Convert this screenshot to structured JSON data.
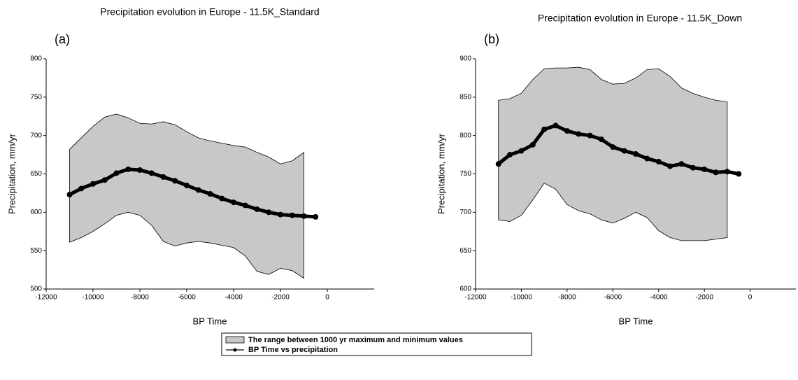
{
  "chart_data": [
    {
      "type": "line",
      "title": "Precipitation evolution in Europe - 11.5K_Standard",
      "panel_label": "(a)",
      "xlabel": "BP Time",
      "ylabel": "Precipitation, mm/yr",
      "xlim": [
        -12000,
        2000
      ],
      "ylim": [
        500,
        800
      ],
      "xticks": [
        -12000,
        -10000,
        -8000,
        -6000,
        -4000,
        -2000,
        0
      ],
      "yticks": [
        500,
        550,
        600,
        650,
        700,
        750,
        800
      ],
      "band": {
        "color": "#c8c8c8",
        "x": [
          -11000,
          -10500,
          -10000,
          -9500,
          -9000,
          -8500,
          -8000,
          -7500,
          -7000,
          -6500,
          -6000,
          -5500,
          -5000,
          -4500,
          -4000,
          -3500,
          -3000,
          -2500,
          -2000,
          -1500,
          -1000
        ],
        "upper": [
          682,
          697,
          712,
          724,
          728,
          723,
          716,
          715,
          718,
          714,
          705,
          697,
          693,
          690,
          687,
          685,
          678,
          672,
          663,
          667,
          678
        ],
        "lower": [
          561,
          567,
          575,
          585,
          596,
          600,
          596,
          583,
          562,
          556,
          560,
          562,
          560,
          557,
          554,
          543,
          523,
          519,
          527,
          524,
          514
        ]
      },
      "series": [
        {
          "color": "#000000",
          "x": [
            -11000,
            -10500,
            -10000,
            -9500,
            -9000,
            -8500,
            -8000,
            -7500,
            -7000,
            -6500,
            -6000,
            -5500,
            -5000,
            -4500,
            -4000,
            -3500,
            -3000,
            -2500,
            -2000,
            -1500,
            -1000,
            -500
          ],
          "values": [
            623,
            631,
            637,
            642,
            651,
            656,
            655,
            651,
            646,
            641,
            635,
            629,
            624,
            618,
            613,
            609,
            604,
            600,
            597,
            596,
            595,
            594
          ]
        }
      ]
    },
    {
      "type": "line",
      "title": "Precipitation evolution in Europe - 11.5K_Down",
      "panel_label": "(b)",
      "xlabel": "BP Time",
      "ylabel": "Precipitation, mm/yr",
      "xlim": [
        -12000,
        2000
      ],
      "ylim": [
        600,
        900
      ],
      "xticks": [
        -12000,
        -10000,
        -8000,
        -6000,
        -4000,
        -2000,
        0
      ],
      "yticks": [
        600,
        650,
        700,
        750,
        800,
        850,
        900
      ],
      "band": {
        "color": "#c8c8c8",
        "x": [
          -11000,
          -10500,
          -10000,
          -9500,
          -9000,
          -8500,
          -8000,
          -7500,
          -7000,
          -6500,
          -6000,
          -5500,
          -5000,
          -4500,
          -4000,
          -3500,
          -3000,
          -2500,
          -2000,
          -1500,
          -1000
        ],
        "upper": [
          846,
          848,
          855,
          873,
          887,
          888,
          888,
          889,
          886,
          873,
          867,
          868,
          875,
          886,
          887,
          877,
          862,
          855,
          850,
          846,
          844
        ],
        "lower": [
          690,
          688,
          696,
          716,
          738,
          730,
          710,
          702,
          698,
          690,
          686,
          692,
          700,
          693,
          676,
          667,
          663,
          663,
          663,
          665,
          667
        ]
      },
      "series": [
        {
          "color": "#000000",
          "x": [
            -11000,
            -10500,
            -10000,
            -9500,
            -9000,
            -8500,
            -8000,
            -7500,
            -7000,
            -6500,
            -6000,
            -5500,
            -5000,
            -4500,
            -4000,
            -3500,
            -3000,
            -2500,
            -2000,
            -1500,
            -1000,
            -500
          ],
          "values": [
            763,
            775,
            780,
            788,
            808,
            813,
            806,
            802,
            800,
            795,
            785,
            780,
            776,
            770,
            766,
            760,
            763,
            758,
            756,
            752,
            753,
            750
          ]
        }
      ]
    }
  ],
  "legend": [
    "The range between 1000 yr maximum and minimum values",
    "BP Time vs precipitation"
  ]
}
